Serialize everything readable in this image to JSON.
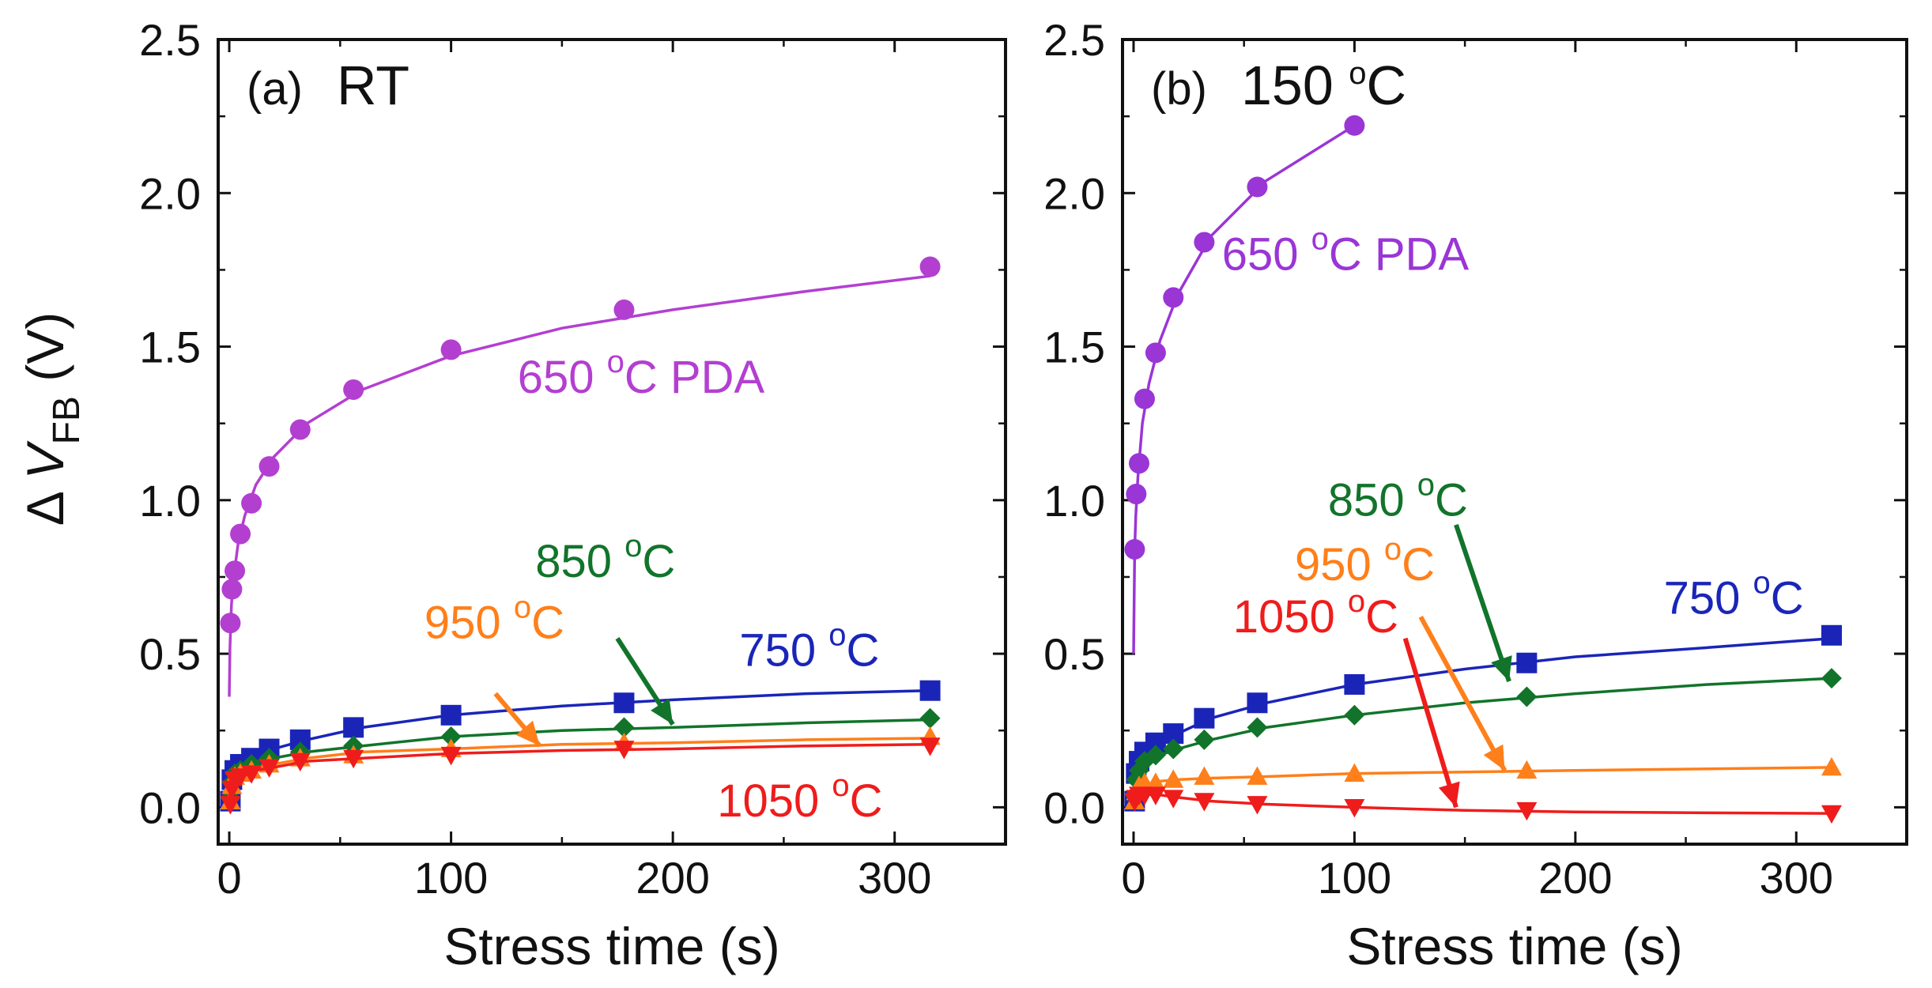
{
  "chart_data": [
    {
      "type": "line",
      "panel_label": "(a)",
      "condition": "RT",
      "xlabel": "Stress time (s)",
      "ylabel": {
        "delta": "Δ",
        "symbol": "V",
        "subscript": "FB",
        "unit": "(V)"
      },
      "xlim": [
        -5,
        350
      ],
      "ylim": [
        -0.12,
        2.5
      ],
      "xticks": [
        0,
        100,
        200,
        300
      ],
      "yticks": [
        0.0,
        0.5,
        1.0,
        1.5,
        2.0,
        2.5
      ],
      "xtick_labels": [
        "0",
        "100",
        "200",
        "300"
      ],
      "ytick_labels": [
        "0.0",
        "0.5",
        "1.0",
        "1.5",
        "2.0",
        "2.5"
      ],
      "series": [
        {
          "key": "pda650",
          "label": "650 °C PDA",
          "label_parts": [
            "650 ",
            "o",
            "C PDA"
          ],
          "color": "#b33fd1",
          "marker": "circle",
          "x": [
            0.5,
            1.2,
            2.5,
            5,
            10,
            18,
            32,
            56,
            100,
            178,
            316
          ],
          "y": [
            0.6,
            0.71,
            0.77,
            0.89,
            0.99,
            1.11,
            1.23,
            1.36,
            1.49,
            1.62,
            1.76
          ],
          "fit": [
            [
              0,
              0.36
            ],
            [
              0.3,
              0.52
            ],
            [
              1,
              0.66
            ],
            [
              2,
              0.75
            ],
            [
              4,
              0.86
            ],
            [
              7,
              0.95
            ],
            [
              12,
              1.05
            ],
            [
              20,
              1.14
            ],
            [
              35,
              1.25
            ],
            [
              60,
              1.36
            ],
            [
              100,
              1.47
            ],
            [
              150,
              1.56
            ],
            [
              200,
              1.62
            ],
            [
              260,
              1.68
            ],
            [
              316,
              1.73
            ]
          ]
        },
        {
          "key": "t750",
          "label": "750 °C",
          "label_parts": [
            "750 ",
            "o",
            "C"
          ],
          "color": "#1a25b8",
          "marker": "square",
          "x": [
            0.5,
            1.2,
            2.5,
            5,
            10,
            18,
            32,
            56,
            100,
            178,
            316
          ],
          "y": [
            0.02,
            0.09,
            0.12,
            0.14,
            0.16,
            0.19,
            0.22,
            0.26,
            0.3,
            0.34,
            0.38
          ],
          "fit": [
            [
              0,
              0.06
            ],
            [
              1,
              0.1
            ],
            [
              3,
              0.13
            ],
            [
              6,
              0.15
            ],
            [
              12,
              0.17
            ],
            [
              20,
              0.19
            ],
            [
              35,
              0.22
            ],
            [
              60,
              0.26
            ],
            [
              100,
              0.3
            ],
            [
              150,
              0.33
            ],
            [
              200,
              0.35
            ],
            [
              260,
              0.37
            ],
            [
              316,
              0.38
            ]
          ]
        },
        {
          "key": "t850",
          "label": "850 °C",
          "label_parts": [
            "850 ",
            "o",
            "C"
          ],
          "color": "#11742a",
          "marker": "diamond",
          "x": [
            0.5,
            1.2,
            2.5,
            5,
            10,
            18,
            32,
            56,
            100,
            178,
            316
          ],
          "y": [
            0.03,
            0.08,
            0.11,
            0.12,
            0.14,
            0.16,
            0.18,
            0.2,
            0.23,
            0.26,
            0.29
          ],
          "fit": [
            [
              0,
              0.05
            ],
            [
              1,
              0.09
            ],
            [
              3,
              0.11
            ],
            [
              6,
              0.13
            ],
            [
              12,
              0.15
            ],
            [
              20,
              0.16
            ],
            [
              35,
              0.18
            ],
            [
              60,
              0.2
            ],
            [
              100,
              0.23
            ],
            [
              150,
              0.25
            ],
            [
              200,
              0.26
            ],
            [
              260,
              0.275
            ],
            [
              316,
              0.285
            ]
          ]
        },
        {
          "key": "t950",
          "label": "950 °C",
          "label_parts": [
            "950 ",
            "o",
            "C"
          ],
          "color": "#ff7f1a",
          "marker": "triangle-up",
          "x": [
            0.5,
            1.2,
            2.5,
            5,
            10,
            18,
            32,
            56,
            100,
            178,
            316
          ],
          "y": [
            0.02,
            0.07,
            0.1,
            0.11,
            0.12,
            0.14,
            0.16,
            0.17,
            0.19,
            0.21,
            0.23
          ],
          "fit": [
            [
              0,
              0.04
            ],
            [
              1,
              0.08
            ],
            [
              3,
              0.1
            ],
            [
              6,
              0.11
            ],
            [
              12,
              0.13
            ],
            [
              20,
              0.14
            ],
            [
              35,
              0.16
            ],
            [
              60,
              0.18
            ],
            [
              100,
              0.19
            ],
            [
              150,
              0.205
            ],
            [
              200,
              0.21
            ],
            [
              260,
              0.22
            ],
            [
              316,
              0.225
            ]
          ]
        },
        {
          "key": "t1050",
          "label": "1050 °C",
          "label_parts": [
            "1050 ",
            "o",
            "C"
          ],
          "color": "#ef1c1c",
          "marker": "triangle-down",
          "x": [
            0.5,
            1.2,
            2.5,
            5,
            10,
            18,
            32,
            56,
            100,
            178,
            316
          ],
          "y": [
            0.01,
            0.06,
            0.09,
            0.1,
            0.11,
            0.13,
            0.15,
            0.16,
            0.17,
            0.19,
            0.2
          ],
          "fit": [
            [
              0,
              0.03
            ],
            [
              1,
              0.07
            ],
            [
              3,
              0.09
            ],
            [
              6,
              0.1
            ],
            [
              12,
              0.12
            ],
            [
              20,
              0.13
            ],
            [
              35,
              0.15
            ],
            [
              60,
              0.16
            ],
            [
              100,
              0.175
            ],
            [
              150,
              0.185
            ],
            [
              200,
              0.19
            ],
            [
              260,
              0.2
            ],
            [
              316,
              0.205
            ]
          ]
        }
      ],
      "annotations": [
        {
          "series": "pda650",
          "text_pos": [
            130,
            1.35
          ],
          "arrow": null
        },
        {
          "series": "t750",
          "text_pos": [
            230,
            0.46
          ],
          "arrow": null
        },
        {
          "series": "t850",
          "text_pos": [
            138,
            0.75
          ],
          "arrow": [
            [
              175,
              0.55
            ],
            [
              200,
              0.27
            ]
          ]
        },
        {
          "series": "t950",
          "text_pos": [
            88,
            0.55
          ],
          "arrow": [
            [
              120,
              0.37
            ],
            [
              140,
              0.2
            ]
          ]
        },
        {
          "series": "t1050",
          "text_pos": [
            220,
            -0.03
          ],
          "arrow": null
        }
      ]
    },
    {
      "type": "line",
      "panel_label": "(b)",
      "condition": "150 °C",
      "condition_parts": [
        "150 ",
        "o",
        "C"
      ],
      "xlabel": "Stress time (s)",
      "xlim": [
        -5,
        350
      ],
      "ylim": [
        -0.12,
        2.5
      ],
      "xticks": [
        0,
        100,
        200,
        300
      ],
      "yticks": [
        0.0,
        0.5,
        1.0,
        1.5,
        2.0,
        2.5
      ],
      "xtick_labels": [
        "0",
        "100",
        "200",
        "300"
      ],
      "ytick_labels": [
        "0.0",
        "0.5",
        "1.0",
        "1.5",
        "2.0",
        "2.5"
      ],
      "series": [
        {
          "key": "pda650",
          "label": "650 °C PDA",
          "label_parts": [
            "650 ",
            "o",
            "C PDA"
          ],
          "color": "#9a35d6",
          "marker": "circle",
          "x": [
            0.5,
            1.2,
            2.5,
            5,
            10,
            18,
            32,
            56,
            100
          ],
          "y": [
            0.84,
            1.02,
            1.12,
            1.33,
            1.48,
            1.66,
            1.84,
            2.02,
            2.22
          ],
          "fit": [
            [
              0,
              0.5
            ],
            [
              0.5,
              0.84
            ],
            [
              1,
              0.95
            ],
            [
              2,
              1.08
            ],
            [
              4,
              1.25
            ],
            [
              7,
              1.38
            ],
            [
              12,
              1.52
            ],
            [
              20,
              1.67
            ],
            [
              35,
              1.86
            ],
            [
              60,
              2.04
            ],
            [
              100,
              2.22
            ]
          ]
        },
        {
          "key": "t750",
          "label": "750 °C",
          "label_parts": [
            "750 ",
            "o",
            "C"
          ],
          "color": "#1a25b8",
          "marker": "square",
          "x": [
            0.5,
            1.2,
            2.5,
            5,
            10,
            18,
            32,
            56,
            100,
            178,
            316
          ],
          "y": [
            0.02,
            0.11,
            0.15,
            0.18,
            0.21,
            0.24,
            0.29,
            0.34,
            0.4,
            0.47,
            0.56
          ],
          "fit": [
            [
              0,
              0.08
            ],
            [
              1,
              0.12
            ],
            [
              3,
              0.15
            ],
            [
              6,
              0.18
            ],
            [
              12,
              0.21
            ],
            [
              20,
              0.24
            ],
            [
              35,
              0.29
            ],
            [
              60,
              0.34
            ],
            [
              100,
              0.4
            ],
            [
              150,
              0.45
            ],
            [
              200,
              0.49
            ],
            [
              260,
              0.52
            ],
            [
              316,
              0.55
            ]
          ]
        },
        {
          "key": "t850",
          "label": "850 °C",
          "label_parts": [
            "850 ",
            "o",
            "C"
          ],
          "color": "#11742a",
          "marker": "diamond",
          "x": [
            0.5,
            1.2,
            2.5,
            5,
            10,
            18,
            32,
            56,
            100,
            178,
            316
          ],
          "y": [
            0.04,
            0.09,
            0.12,
            0.15,
            0.17,
            0.19,
            0.22,
            0.26,
            0.3,
            0.36,
            0.42
          ],
          "fit": [
            [
              0,
              0.06
            ],
            [
              1,
              0.09
            ],
            [
              3,
              0.12
            ],
            [
              6,
              0.15
            ],
            [
              12,
              0.17
            ],
            [
              20,
              0.19
            ],
            [
              35,
              0.22
            ],
            [
              60,
              0.26
            ],
            [
              100,
              0.3
            ],
            [
              150,
              0.34
            ],
            [
              200,
              0.37
            ],
            [
              260,
              0.4
            ],
            [
              316,
              0.42
            ]
          ]
        },
        {
          "key": "t950",
          "label": "950 °C",
          "label_parts": [
            "950 ",
            "o",
            "C"
          ],
          "color": "#ff7f1a",
          "marker": "triangle-up",
          "x": [
            0.5,
            1.2,
            2.5,
            5,
            10,
            18,
            32,
            56,
            100,
            178,
            316
          ],
          "y": [
            0.02,
            0.05,
            0.07,
            0.08,
            0.08,
            0.09,
            0.1,
            0.1,
            0.11,
            0.12,
            0.13
          ],
          "fit": [
            [
              0,
              0.03
            ],
            [
              1,
              0.05
            ],
            [
              3,
              0.07
            ],
            [
              6,
              0.075
            ],
            [
              12,
              0.085
            ],
            [
              20,
              0.09
            ],
            [
              35,
              0.095
            ],
            [
              60,
              0.1
            ],
            [
              100,
              0.11
            ],
            [
              150,
              0.115
            ],
            [
              200,
              0.12
            ],
            [
              260,
              0.125
            ],
            [
              316,
              0.13
            ]
          ]
        },
        {
          "key": "t1050",
          "label": "1050 °C",
          "label_parts": [
            "1050 ",
            "o",
            "C"
          ],
          "color": "#ef1c1c",
          "marker": "triangle-down",
          "x": [
            0.5,
            1.2,
            2.5,
            5,
            10,
            18,
            32,
            56,
            100,
            178,
            316
          ],
          "y": [
            0.02,
            0.03,
            0.04,
            0.04,
            0.04,
            0.03,
            0.02,
            0.01,
            0.0,
            -0.01,
            -0.02
          ],
          "fit": [
            [
              0,
              0.02
            ],
            [
              1,
              0.03
            ],
            [
              3,
              0.04
            ],
            [
              6,
              0.042
            ],
            [
              12,
              0.04
            ],
            [
              20,
              0.032
            ],
            [
              35,
              0.02
            ],
            [
              60,
              0.01
            ],
            [
              100,
              0.0
            ],
            [
              150,
              -0.01
            ],
            [
              200,
              -0.015
            ],
            [
              260,
              -0.018
            ],
            [
              316,
              -0.02
            ]
          ]
        }
      ],
      "annotations": [
        {
          "series": "pda650",
          "text_pos": [
            40,
            1.75
          ],
          "arrow": null
        },
        {
          "series": "t750",
          "text_pos": [
            240,
            0.63
          ],
          "arrow": null
        },
        {
          "series": "t850",
          "text_pos": [
            88,
            0.95
          ],
          "arrow": [
            [
              146,
              0.92
            ],
            [
              170,
              0.41
            ]
          ]
        },
        {
          "series": "t950",
          "text_pos": [
            73,
            0.74
          ],
          "arrow": [
            [
              130,
              0.62
            ],
            [
              168,
              0.12
            ]
          ]
        },
        {
          "series": "t1050",
          "text_pos": [
            45,
            0.57
          ],
          "arrow": [
            [
              123,
              0.55
            ],
            [
              146,
              0.0
            ]
          ]
        }
      ]
    }
  ]
}
